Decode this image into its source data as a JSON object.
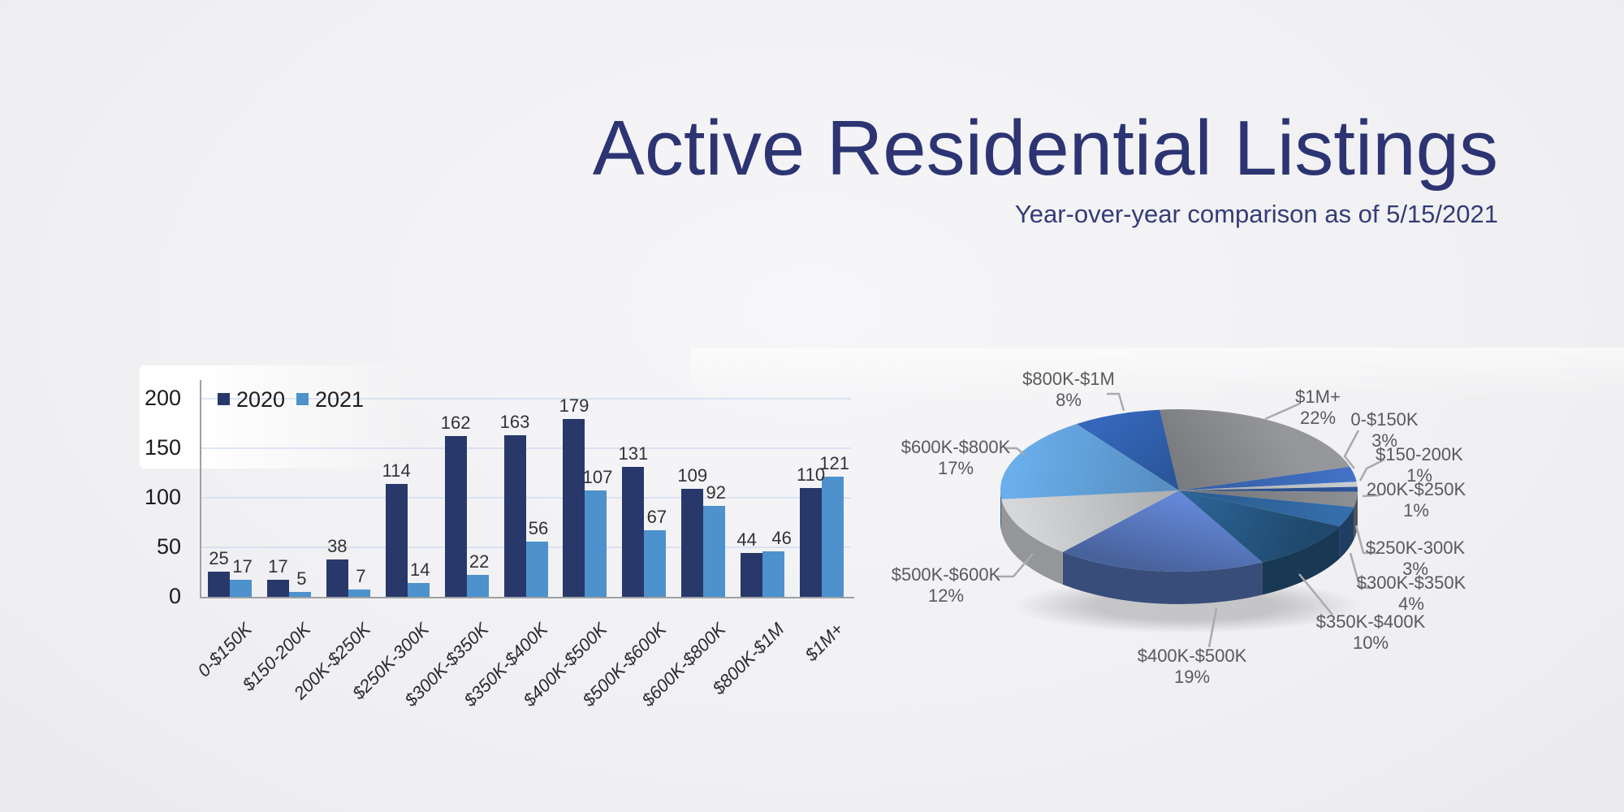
{
  "header": {
    "title": "Active Residential Listings",
    "subtitle": "Year-over-year comparison as of 5/15/2021"
  },
  "chart_data": [
    {
      "type": "bar",
      "title": "",
      "categories": [
        "0-$150K",
        "$150-200K",
        "200K-$250K",
        "$250K-300K",
        "$300K-$350K",
        "$350K-$400K",
        "$400K-$500K",
        "$500K-$600K",
        "$600K-$800K",
        "$800K-$1M",
        "$1M+"
      ],
      "series": [
        {
          "name": "2020",
          "color": "#28386b",
          "values": [
            25,
            17,
            38,
            114,
            162,
            163,
            179,
            131,
            109,
            44,
            110
          ]
        },
        {
          "name": "2021",
          "color": "#4d91cd",
          "values": [
            17,
            5,
            7,
            14,
            22,
            56,
            107,
            67,
            92,
            46,
            121
          ]
        }
      ],
      "xlabel": "",
      "ylabel": "",
      "ylim": [
        0,
        200
      ],
      "yticks": [
        0,
        50,
        100,
        150,
        200
      ],
      "grid": true,
      "legend_position": "top-left"
    },
    {
      "type": "pie",
      "style": "3d",
      "title": "",
      "labels": [
        "0-$150K",
        "$150-200K",
        "200K-$250K",
        "$250K-300K",
        "$300K-$350K",
        "$350K-$400K",
        "$400K-$500K",
        "$500K-$600K",
        "$600K-$800K",
        "$800K-$1M",
        "$1M+"
      ],
      "values_percent": [
        3,
        1,
        1,
        3,
        4,
        10,
        19,
        12,
        17,
        8,
        22
      ],
      "percent_labels": [
        "3%",
        "1%",
        "1%",
        "3%",
        "4%",
        "10%",
        "19%",
        "12%",
        "17%",
        "8%",
        "22%"
      ],
      "colors": [
        "#3b66b2",
        "#b5b8bb",
        "#2b4d89",
        "#7f8184",
        "#2f639a",
        "#265884",
        "#5878be",
        "#bec0c2",
        "#5f9bd3",
        "#2e5ca6",
        "#85878a"
      ],
      "legend_position": "labels-outside"
    }
  ]
}
